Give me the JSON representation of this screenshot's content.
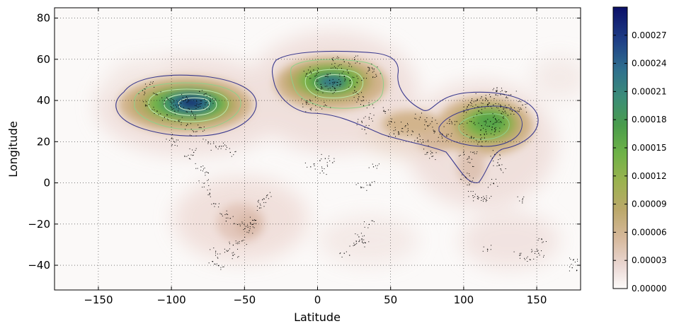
{
  "chart_data": {
    "type": "heatmap",
    "title": "",
    "xlabel": "Latitude",
    "ylabel": "Longitude",
    "xlim": [
      -180,
      180
    ],
    "ylim": [
      -52,
      85
    ],
    "x_ticks": [
      -150,
      -100,
      -50,
      0,
      50,
      100,
      150
    ],
    "x_tick_labels": [
      "−150",
      "−100",
      "−50",
      "0",
      "50",
      "100",
      "150"
    ],
    "y_ticks": [
      80,
      60,
      40,
      20,
      0,
      -20,
      -40
    ],
    "y_tick_labels": [
      "80",
      "60",
      "40",
      "20",
      "0",
      "−20",
      "−40"
    ],
    "grid": true,
    "colormap": "gist_earth_r",
    "colorbar": {
      "range": [
        0,
        0.0003
      ],
      "ticks": [
        0.0,
        3e-05,
        6e-05,
        9e-05,
        0.00012,
        0.00015,
        0.00018,
        0.00021,
        0.00024,
        0.00027
      ],
      "tick_labels": [
        "0.00000",
        "0.00003",
        "0.00006",
        "0.00009",
        "0.00012",
        "0.00015",
        "0.00018",
        "0.00021",
        "0.00024",
        "0.00027"
      ]
    },
    "density_peaks": [
      {
        "x": -87,
        "y": 38,
        "peak": 0.0003
      },
      {
        "x": 10,
        "y": 48,
        "peak": 0.00024
      },
      {
        "x": 115,
        "y": 30,
        "peak": 0.000145
      },
      {
        "x": -50,
        "y": -20,
        "peak": 2e-05
      }
    ],
    "contour_levels": [
      3e-05,
      9e-05,
      0.00015,
      0.00021,
      0.00027
    ],
    "series": [
      {
        "type": "scatter",
        "points": [
          [
            -120,
            45
          ],
          [
            -115,
            48
          ],
          [
            -110,
            43
          ],
          [
            -105,
            40
          ],
          [
            -100,
            39
          ],
          [
            -98,
            35
          ],
          [
            -95,
            38
          ],
          [
            -92,
            40
          ],
          [
            -90,
            42
          ],
          [
            -88,
            36
          ],
          [
            -85,
            33
          ],
          [
            -82,
            37
          ],
          [
            -80,
            40
          ],
          [
            -78,
            43
          ],
          [
            -75,
            38
          ],
          [
            -72,
            41
          ],
          [
            -95,
            30
          ],
          [
            -90,
            28
          ],
          [
            -85,
            25
          ],
          [
            -100,
            22
          ],
          [
            -98,
            20
          ],
          [
            -105,
            32
          ],
          [
            -110,
            35
          ],
          [
            -118,
            38
          ],
          [
            -80,
            27
          ],
          [
            -75,
            20
          ],
          [
            -70,
            18
          ],
          [
            -66,
            18
          ],
          [
            -60,
            15
          ],
          [
            -85,
            15
          ],
          [
            -88,
            12
          ],
          [
            -80,
            8
          ],
          [
            -75,
            5
          ],
          [
            -78,
            0
          ],
          [
            -74,
            -5
          ],
          [
            -70,
            -10
          ],
          [
            -66,
            -15
          ],
          [
            -60,
            -17
          ],
          [
            -55,
            -20
          ],
          [
            -50,
            -22
          ],
          [
            -47,
            -23
          ],
          [
            -45,
            -20
          ],
          [
            -43,
            -18
          ],
          [
            -40,
            -12
          ],
          [
            -38,
            -8
          ],
          [
            -35,
            -6
          ],
          [
            -58,
            -30
          ],
          [
            -62,
            -33
          ],
          [
            -70,
            -33
          ],
          [
            -72,
            -38
          ],
          [
            -68,
            -40
          ],
          [
            -58,
            -35
          ],
          [
            -52,
            -28
          ],
          [
            -5,
            40
          ],
          [
            0,
            45
          ],
          [
            2,
            48
          ],
          [
            5,
            52
          ],
          [
            8,
            50
          ],
          [
            10,
            47
          ],
          [
            12,
            45
          ],
          [
            15,
            48
          ],
          [
            18,
            52
          ],
          [
            20,
            55
          ],
          [
            22,
            50
          ],
          [
            25,
            45
          ],
          [
            28,
            42
          ],
          [
            30,
            50
          ],
          [
            35,
            55
          ],
          [
            37,
            56
          ],
          [
            40,
            52
          ],
          [
            -3,
            55
          ],
          [
            -8,
            53
          ],
          [
            -2,
            52
          ],
          [
            12,
            56
          ],
          [
            18,
            59
          ],
          [
            25,
            60
          ],
          [
            10,
            60
          ],
          [
            5,
            38
          ],
          [
            -5,
            36
          ],
          [
            -8,
            39
          ],
          [
            30,
            40
          ],
          [
            35,
            38
          ],
          [
            45,
            35
          ],
          [
            50,
            30
          ],
          [
            55,
            25
          ],
          [
            52,
            24
          ],
          [
            60,
            28
          ],
          [
            65,
            25
          ],
          [
            68,
            22
          ],
          [
            72,
            20
          ],
          [
            75,
            15
          ],
          [
            78,
            13
          ],
          [
            80,
            25
          ],
          [
            85,
            22
          ],
          [
            88,
            23
          ],
          [
            78,
            30
          ],
          [
            70,
            32
          ],
          [
            75,
            28
          ],
          [
            30,
            30
          ],
          [
            32,
            26
          ],
          [
            35,
            32
          ],
          [
            3,
            6
          ],
          [
            -5,
            8
          ],
          [
            5,
            12
          ],
          [
            10,
            10
          ],
          [
            30,
            -2
          ],
          [
            36,
            -1
          ],
          [
            30,
            -27
          ],
          [
            28,
            -26
          ],
          [
            18,
            -34
          ],
          [
            25,
            -30
          ],
          [
            31,
            -29
          ],
          [
            35,
            -20
          ],
          [
            38,
            8
          ],
          [
            100,
            35
          ],
          [
            105,
            30
          ],
          [
            110,
            35
          ],
          [
            112,
            28
          ],
          [
            115,
            25
          ],
          [
            118,
            30
          ],
          [
            120,
            32
          ],
          [
            116,
            38
          ],
          [
            120,
            38
          ],
          [
            125,
            37
          ],
          [
            127,
            36
          ],
          [
            128,
            35
          ],
          [
            135,
            35
          ],
          [
            139,
            36
          ],
          [
            140,
            38
          ],
          [
            130,
            33
          ],
          [
            121,
            25
          ],
          [
            114,
            22
          ],
          [
            110,
            20
          ],
          [
            106,
            15
          ],
          [
            104,
            10
          ],
          [
            100,
            14
          ],
          [
            101,
            3
          ],
          [
            104,
            1
          ],
          [
            106,
            -6
          ],
          [
            110,
            -7
          ],
          [
            112,
            -7
          ],
          [
            115,
            -8
          ],
          [
            121,
            14
          ],
          [
            123,
            10
          ],
          [
            125,
            7
          ],
          [
            120,
            0
          ],
          [
            140,
            -8
          ],
          [
            145,
            -37
          ],
          [
            150,
            -33
          ],
          [
            151,
            -34
          ],
          [
            138,
            -35
          ],
          [
            153,
            -27
          ],
          [
            116,
            -32
          ],
          [
            175,
            -37
          ],
          [
            174,
            -41
          ],
          [
            95,
            30
          ],
          [
            90,
            29
          ],
          [
            105,
            22
          ],
          [
            118,
            42
          ],
          [
            122,
            45
          ],
          [
            126,
            45
          ],
          [
            132,
            43
          ],
          [
            108,
            40
          ],
          [
            112,
            42
          ],
          [
            103,
            38
          ],
          [
            125,
            30
          ],
          [
            119,
            26
          ],
          [
            125,
            43
          ],
          [
            110,
            37
          ]
        ]
      }
    ]
  }
}
